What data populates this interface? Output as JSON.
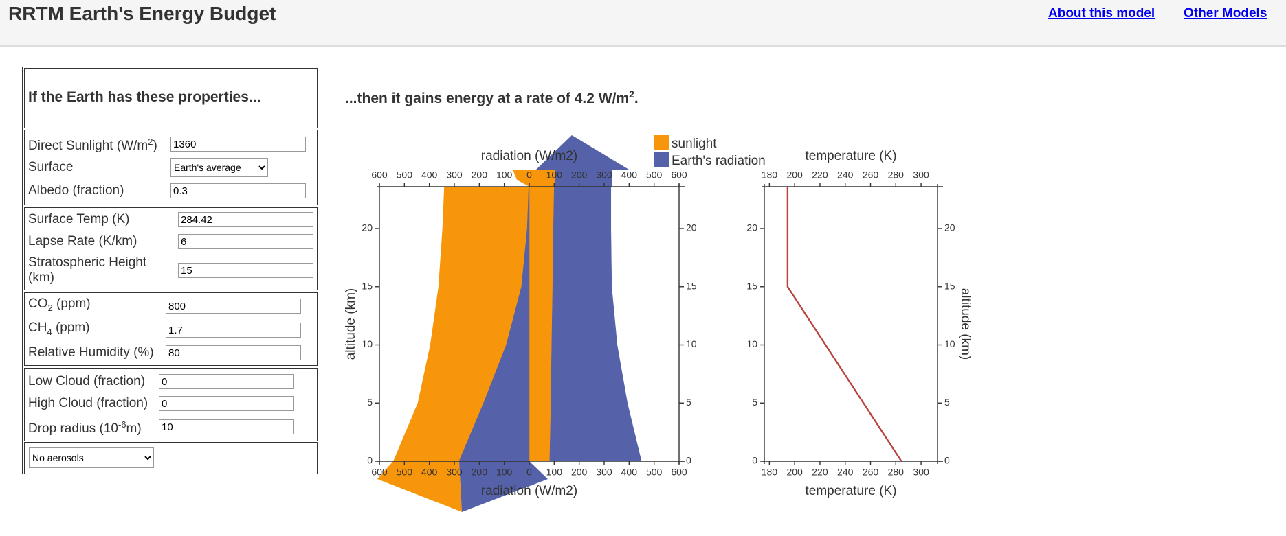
{
  "header": {
    "title": "RRTM Earth's Energy Budget",
    "links": [
      "About this model",
      "Other Models"
    ]
  },
  "form": {
    "heading": "If the Earth has these properties...",
    "sections": [
      {
        "fields": [
          {
            "label": "Direct Sunlight (W/m",
            "sup": "2",
            "label_end": ")",
            "value": 1360
          },
          {
            "label": "Surface",
            "choice": "Earth's average"
          },
          {
            "label": "Albedo (fraction)",
            "value": 0.3
          }
        ]
      },
      {
        "fields": [
          {
            "label": "Surface Temp (K)",
            "value": 284.42
          },
          {
            "label": "Lapse Rate (K/km)",
            "value": 6
          },
          {
            "label": "Stratospheric Height (km)",
            "value": 15
          }
        ]
      },
      {
        "fields": [
          {
            "label": "CO",
            "sub": "2",
            "label_end": " (ppm)",
            "value": 800
          },
          {
            "label": "CH",
            "sub": "4",
            "label_end": " (ppm)",
            "value": 1.7
          },
          {
            "label": "Relative Humidity (%)",
            "value": 80
          }
        ]
      },
      {
        "fields": [
          {
            "label": "Low Cloud (fraction)",
            "value": 0
          },
          {
            "label": "High Cloud (fraction)",
            "value": 0
          },
          {
            "label": "Drop radius (10",
            "sup": "-6",
            "label_end": "m)",
            "value": 10
          }
        ]
      },
      {
        "fields": [
          {
            "choice": "No aerosols"
          }
        ]
      }
    ]
  },
  "result": {
    "text": "...then it gains energy at a rate of ",
    "value": 4.2,
    "unit": " W/m",
    "sup": "2",
    "end": "."
  },
  "chart_data": [
    {
      "type": "band",
      "xlabel": "radiation (W/m2)",
      "ylabel": "altitude (km)",
      "xlim": [
        -600,
        600
      ],
      "ylim": [
        0,
        23.6
      ],
      "xticks": [
        {
          "value": -600,
          "label": "600"
        },
        {
          "value": -500,
          "label": "500"
        },
        {
          "value": -400,
          "label": "400"
        },
        {
          "value": -300,
          "label": "300"
        },
        {
          "value": -200,
          "label": "200"
        },
        {
          "value": -100,
          "label": "100"
        },
        0,
        100,
        200,
        300,
        400,
        500,
        600
      ],
      "yticks": [
        0,
        5,
        10,
        15,
        20
      ],
      "altitude": [
        0,
        5,
        10,
        15,
        20,
        23.6
      ],
      "series": [
        {
          "name": "sunlight",
          "color": "#f7960b",
          "bands": [
            {
              "left": [
                -544,
                -446,
                -396,
                -363,
                -347,
                -340
              ],
              "right": [
                -281,
                -183,
                -92,
                -31,
                -8,
                -2
              ]
            },
            {
              "left": [
                0,
                0,
                0,
                0,
                0,
                0
              ],
              "right": [
                82,
                87,
                90,
                94,
                97,
                100
              ]
            }
          ]
        },
        {
          "name": "Earth's radiation",
          "color": "#5561a8",
          "bands": [
            {
              "left": [
                -281,
                -183,
                -92,
                -31,
                -8,
                -2
              ],
              "right": [
                0,
                0,
                0,
                0,
                0,
                0
              ]
            },
            {
              "left": [
                82,
                87,
                90,
                94,
                97,
                100
              ],
              "right": [
                449,
                393,
                352,
                330,
                327,
                327
              ]
            }
          ]
        }
      ]
    },
    {
      "type": "line",
      "xlabel": "temperature (K)",
      "ylabel": "altitude (km)",
      "xlim": [
        176,
        313
      ],
      "ylim": [
        0,
        23.6
      ],
      "xticks": [
        180,
        200,
        220,
        240,
        260,
        280,
        300
      ],
      "yticks": [
        0,
        5,
        10,
        15,
        20
      ],
      "series": [
        {
          "color": "#b7443e",
          "values": [
            284.42,
            254.42,
            224.42,
            194.42,
            194.42,
            194.42
          ],
          "altitude": [
            0,
            5,
            10,
            15,
            20,
            23.6
          ]
        }
      ]
    }
  ]
}
